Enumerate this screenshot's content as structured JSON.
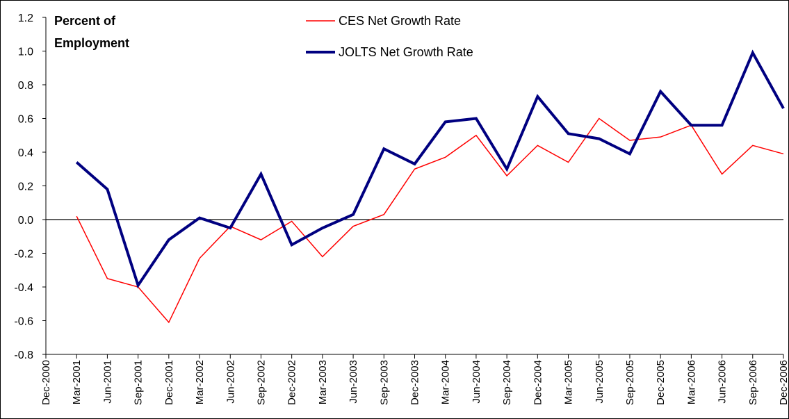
{
  "chart_data": {
    "type": "line",
    "annotation": [
      "Percent of",
      "Employment"
    ],
    "categories": [
      "Dec-2000",
      "Mar-2001",
      "Jun-2001",
      "Sep-2001",
      "Dec-2001",
      "Mar-2002",
      "Jun-2002",
      "Sep-2002",
      "Dec-2002",
      "Mar-2003",
      "Jun-2003",
      "Sep-2003",
      "Dec-2003",
      "Mar-2004",
      "Jun-2004",
      "Sep-2004",
      "Dec-2004",
      "Mar-2005",
      "Jun-2005",
      "Sep-2005",
      "Dec-2005",
      "Mar-2006",
      "Jun-2006",
      "Sep-2006",
      "Dec-2006"
    ],
    "series": [
      {
        "name": "CES Net Growth Rate",
        "color": "#ff0000",
        "width": 1.5,
        "values": [
          null,
          0.02,
          -0.35,
          -0.4,
          -0.61,
          -0.23,
          -0.04,
          -0.12,
          -0.01,
          -0.22,
          -0.04,
          0.03,
          0.3,
          0.37,
          0.5,
          0.26,
          0.44,
          0.34,
          0.6,
          0.47,
          0.49,
          0.56,
          0.27,
          0.44,
          0.39
        ]
      },
      {
        "name": "JOLTS Net Growth Rate",
        "color": "#000080",
        "width": 4,
        "values": [
          null,
          0.34,
          0.18,
          -0.39,
          -0.12,
          0.01,
          -0.05,
          0.27,
          -0.15,
          -0.05,
          0.03,
          0.42,
          0.33,
          0.58,
          0.6,
          0.3,
          0.73,
          0.51,
          0.48,
          0.39,
          0.76,
          0.56,
          0.56,
          0.99,
          0.66
        ]
      }
    ],
    "ylim": [
      -0.8,
      1.2
    ],
    "yticks": [
      -0.8,
      -0.6,
      -0.4,
      -0.2,
      {
        "value": 0,
        "label": "0.0"
      },
      0.2,
      0.4,
      0.6,
      0.8,
      {
        "value": 1,
        "label": "1.0"
      },
      1.2
    ]
  }
}
